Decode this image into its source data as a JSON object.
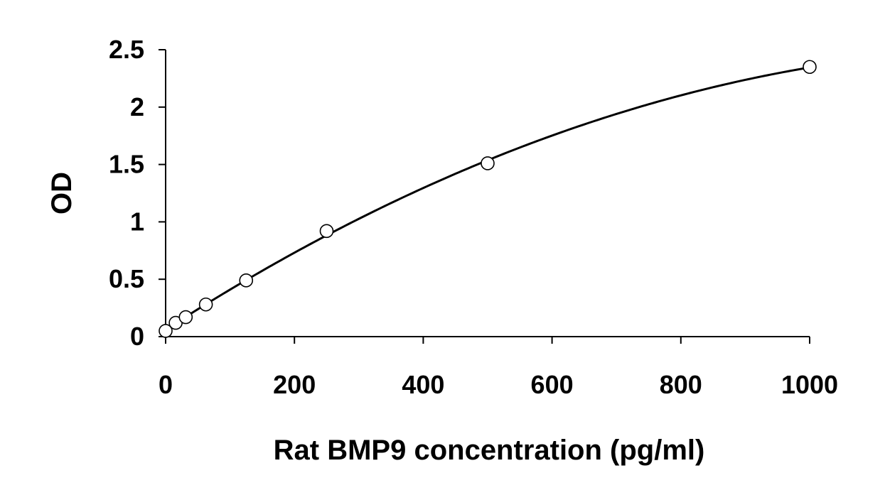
{
  "chart_data": {
    "type": "scatter",
    "xlabel": "Rat BMP9 concentration (pg/ml)",
    "ylabel": "OD",
    "xlim": [
      0,
      1000
    ],
    "ylim": [
      0,
      2.5
    ],
    "xticks": [
      0,
      200,
      400,
      600,
      800,
      1000
    ],
    "yticks": [
      0,
      0.5,
      1,
      1.5,
      2,
      2.5
    ],
    "xtick_labels": [
      "0",
      "200",
      "400",
      "600",
      "800",
      "1000"
    ],
    "ytick_labels": [
      "0",
      "0.5",
      "1",
      "1.5",
      "2",
      "2.5"
    ],
    "grid": false,
    "series": [
      {
        "x": [
          0,
          15.6,
          31.25,
          62.5,
          125,
          250,
          500,
          1000
        ],
        "y": [
          0.05,
          0.12,
          0.17,
          0.28,
          0.49,
          0.92,
          1.51,
          2.35
        ],
        "marker": "open-circle",
        "fit_line": true
      }
    ]
  }
}
